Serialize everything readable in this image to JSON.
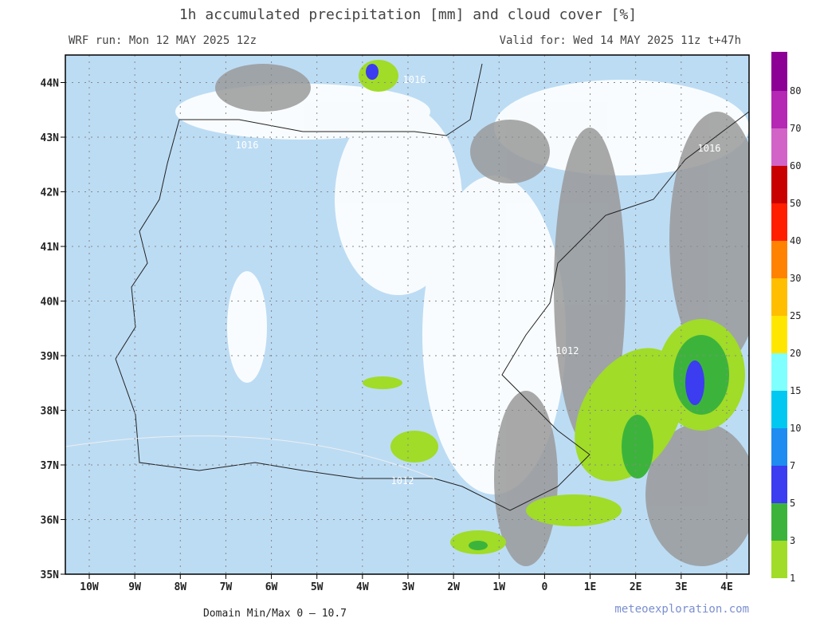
{
  "header": {
    "title": "1h accumulated precipitation [mm] and cloud cover [%]",
    "run": "WRF run: Mon 12 MAY 2025 12z",
    "valid": "Valid for: Wed 14 MAY 2025 11z  t+47h"
  },
  "map": {
    "lat_labels": [
      "35N",
      "36N",
      "37N",
      "38N",
      "39N",
      "40N",
      "41N",
      "42N",
      "43N",
      "44N"
    ],
    "lon_labels": [
      "10W",
      "9W",
      "8W",
      "7W",
      "6W",
      "5W",
      "4W",
      "3W",
      "2W",
      "1W",
      "0",
      "1E",
      "2E",
      "3E",
      "4E"
    ],
    "isobar_labels": [
      "1016",
      "1016",
      "1016",
      "1012",
      "1012"
    ]
  },
  "colorbar": {
    "levels": [
      {
        "label": "1",
        "color": "#a0dc28"
      },
      {
        "label": "3",
        "color": "#3cb43c"
      },
      {
        "label": "5",
        "color": "#3c3cf0"
      },
      {
        "label": "7",
        "color": "#1e8cf0"
      },
      {
        "label": "10",
        "color": "#00c8f0"
      },
      {
        "label": "15",
        "color": "#80ffff"
      },
      {
        "label": "20",
        "color": "#ffe600"
      },
      {
        "label": "25",
        "color": "#ffbe00"
      },
      {
        "label": "30",
        "color": "#ff8200"
      },
      {
        "label": "40",
        "color": "#ff1e00"
      },
      {
        "label": "50",
        "color": "#c80000"
      },
      {
        "label": "60",
        "color": "#d264c8"
      },
      {
        "label": "70",
        "color": "#b428b4"
      },
      {
        "label": "80",
        "color": "#8c0096"
      }
    ]
  },
  "footer": {
    "minmax": "Domain Min/Max 0 — 10.7",
    "credit": "meteoexploration.com"
  }
}
